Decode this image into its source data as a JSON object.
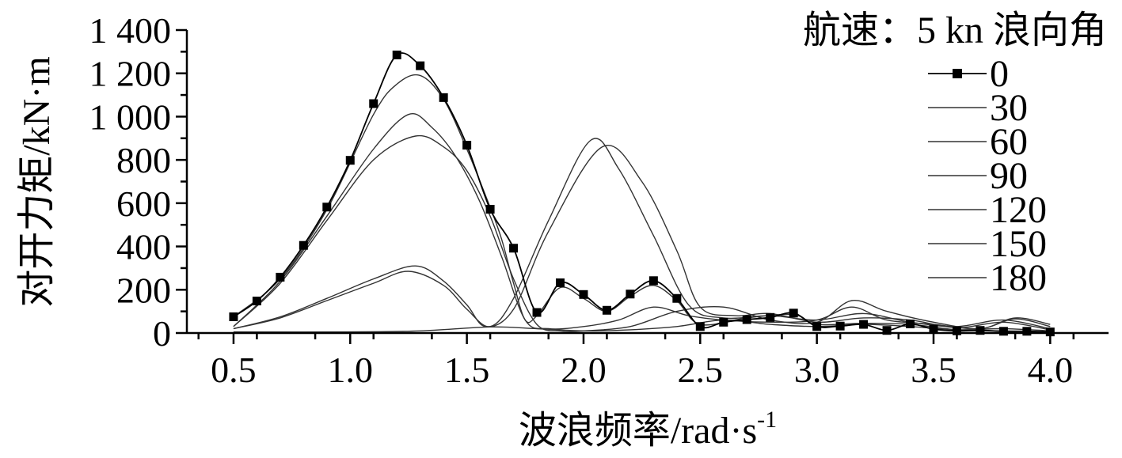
{
  "chart_data": {
    "type": "line",
    "title": "",
    "xlabel": "波浪频率/rad·s",
    "xlabel_superscript": "-1",
    "ylabel": "对开力矩/kN·m",
    "xlim": [
      0.3,
      4.25
    ],
    "ylim": [
      0,
      1400
    ],
    "x_ticks": [
      0.5,
      1.0,
      1.5,
      2.0,
      2.5,
      3.0,
      3.5,
      4.0
    ],
    "x_tick_labels": [
      "0.5",
      "1.0",
      "1.5",
      "2.0",
      "2.5",
      "3.0",
      "3.5",
      "4.0"
    ],
    "y_ticks": [
      0,
      200,
      400,
      600,
      800,
      1000,
      1200,
      1400
    ],
    "y_tick_labels": [
      "0",
      "200",
      "400",
      "600",
      "800",
      "1 000",
      "1 200",
      "1 400"
    ],
    "legend_title": "航速：5 kn 浪向角",
    "legend_position": "top-right",
    "grid": false,
    "series": [
      {
        "name": "0",
        "marker": "square",
        "points": [
          [
            0.5,
            75
          ],
          [
            0.6,
            148
          ],
          [
            0.7,
            258
          ],
          [
            0.8,
            405
          ],
          [
            0.9,
            582
          ],
          [
            1.0,
            798
          ],
          [
            1.1,
            1060
          ],
          [
            1.2,
            1285
          ],
          [
            1.3,
            1235
          ],
          [
            1.4,
            1088
          ],
          [
            1.5,
            868
          ],
          [
            1.6,
            572
          ],
          [
            1.7,
            392
          ],
          [
            1.8,
            95
          ],
          [
            1.9,
            232
          ],
          [
            2.0,
            178
          ],
          [
            2.1,
            105
          ],
          [
            2.2,
            180
          ],
          [
            2.3,
            242
          ],
          [
            2.4,
            160
          ],
          [
            2.5,
            30
          ],
          [
            2.6,
            50
          ],
          [
            2.7,
            62
          ],
          [
            2.8,
            72
          ],
          [
            2.9,
            92
          ],
          [
            3.0,
            30
          ],
          [
            3.1,
            32
          ],
          [
            3.2,
            40
          ],
          [
            3.3,
            12
          ],
          [
            3.4,
            42
          ],
          [
            3.5,
            18
          ],
          [
            3.6,
            10
          ],
          [
            3.7,
            12
          ],
          [
            3.8,
            8
          ],
          [
            3.9,
            8
          ],
          [
            4.0,
            5
          ]
        ]
      },
      {
        "name": "30",
        "points": [
          [
            0.5,
            75
          ],
          [
            0.7,
            250
          ],
          [
            0.9,
            570
          ],
          [
            1.1,
            1010
          ],
          [
            1.2,
            1150
          ],
          [
            1.3,
            1190
          ],
          [
            1.4,
            1080
          ],
          [
            1.5,
            850
          ],
          [
            1.6,
            580
          ],
          [
            1.65,
            430
          ],
          [
            1.7,
            230
          ],
          [
            1.75,
            60
          ],
          [
            1.8,
            80
          ],
          [
            1.9,
            210
          ],
          [
            2.0,
            160
          ],
          [
            2.1,
            100
          ],
          [
            2.2,
            170
          ],
          [
            2.3,
            220
          ],
          [
            2.4,
            150
          ],
          [
            2.5,
            40
          ],
          [
            2.7,
            70
          ],
          [
            2.9,
            85
          ],
          [
            3.0,
            40
          ],
          [
            3.2,
            45
          ],
          [
            3.4,
            40
          ],
          [
            3.6,
            15
          ],
          [
            3.8,
            10
          ],
          [
            4.0,
            5
          ]
        ]
      },
      {
        "name": "60",
        "points": [
          [
            0.5,
            30
          ],
          [
            0.7,
            240
          ],
          [
            0.9,
            540
          ],
          [
            1.1,
            850
          ],
          [
            1.25,
            1010
          ],
          [
            1.35,
            950
          ],
          [
            1.45,
            820
          ],
          [
            1.55,
            620
          ],
          [
            1.65,
            350
          ],
          [
            1.75,
            60
          ],
          [
            1.85,
            20
          ],
          [
            2.0,
            30
          ],
          [
            2.15,
            60
          ],
          [
            2.3,
            120
          ],
          [
            2.45,
            80
          ],
          [
            2.6,
            60
          ],
          [
            2.8,
            50
          ],
          [
            3.0,
            60
          ],
          [
            3.15,
            120
          ],
          [
            3.3,
            60
          ],
          [
            3.5,
            40
          ],
          [
            3.7,
            20
          ],
          [
            3.85,
            65
          ],
          [
            4.0,
            30
          ]
        ]
      },
      {
        "name": "90",
        "points": [
          [
            0.5,
            30
          ],
          [
            0.7,
            230
          ],
          [
            0.9,
            520
          ],
          [
            1.1,
            800
          ],
          [
            1.28,
            910
          ],
          [
            1.4,
            860
          ],
          [
            1.5,
            750
          ],
          [
            1.6,
            540
          ],
          [
            1.7,
            250
          ],
          [
            1.8,
            40
          ],
          [
            1.9,
            10
          ],
          [
            2.0,
            10
          ],
          [
            2.2,
            30
          ],
          [
            2.4,
            100
          ],
          [
            2.6,
            120
          ],
          [
            2.8,
            60
          ],
          [
            3.0,
            50
          ],
          [
            3.15,
            150
          ],
          [
            3.3,
            100
          ],
          [
            3.5,
            50
          ],
          [
            3.7,
            20
          ],
          [
            3.85,
            70
          ],
          [
            4.0,
            40
          ]
        ]
      },
      {
        "name": "120",
        "points": [
          [
            0.5,
            20
          ],
          [
            0.7,
            70
          ],
          [
            0.9,
            150
          ],
          [
            1.1,
            230
          ],
          [
            1.25,
            285
          ],
          [
            1.4,
            220
          ],
          [
            1.5,
            110
          ],
          [
            1.6,
            30
          ],
          [
            1.7,
            160
          ],
          [
            1.85,
            520
          ],
          [
            2.03,
            890
          ],
          [
            2.15,
            760
          ],
          [
            2.3,
            450
          ],
          [
            2.45,
            130
          ],
          [
            2.6,
            70
          ],
          [
            2.8,
            80
          ],
          [
            3.0,
            60
          ],
          [
            3.2,
            90
          ],
          [
            3.4,
            50
          ],
          [
            3.6,
            30
          ],
          [
            3.8,
            60
          ],
          [
            4.0,
            20
          ]
        ]
      },
      {
        "name": "150",
        "points": [
          [
            0.5,
            20
          ],
          [
            0.7,
            75
          ],
          [
            0.9,
            160
          ],
          [
            1.1,
            250
          ],
          [
            1.28,
            310
          ],
          [
            1.4,
            240
          ],
          [
            1.5,
            130
          ],
          [
            1.58,
            30
          ],
          [
            1.7,
            110
          ],
          [
            1.85,
            470
          ],
          [
            2.08,
            860
          ],
          [
            2.25,
            700
          ],
          [
            2.4,
            380
          ],
          [
            2.5,
            120
          ],
          [
            2.65,
            80
          ],
          [
            2.8,
            90
          ],
          [
            3.0,
            50
          ],
          [
            3.2,
            70
          ],
          [
            3.4,
            60
          ],
          [
            3.6,
            25
          ],
          [
            3.8,
            50
          ],
          [
            4.0,
            15
          ]
        ]
      },
      {
        "name": "180",
        "points": [
          [
            0.5,
            5
          ],
          [
            1.0,
            5
          ],
          [
            1.3,
            10
          ],
          [
            1.6,
            28
          ],
          [
            1.8,
            20
          ],
          [
            2.0,
            10
          ],
          [
            2.2,
            15
          ],
          [
            2.4,
            30
          ],
          [
            2.6,
            60
          ],
          [
            2.8,
            40
          ],
          [
            3.0,
            30
          ],
          [
            3.2,
            40
          ],
          [
            3.4,
            30
          ],
          [
            3.6,
            15
          ],
          [
            3.8,
            20
          ],
          [
            4.0,
            10
          ]
        ]
      }
    ]
  }
}
